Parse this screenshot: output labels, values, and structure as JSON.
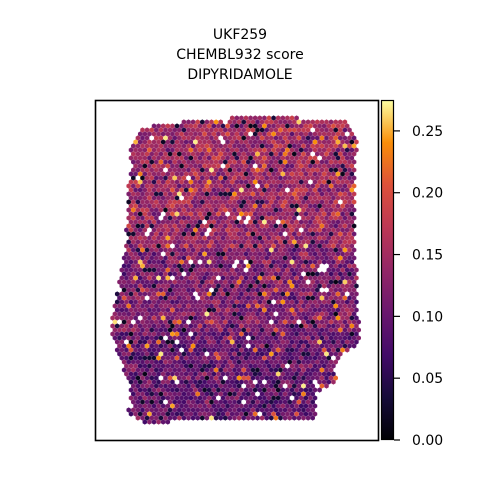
{
  "title_lines": [
    "UKF259",
    "CHEMBL932 score",
    "DIPYRIDAMOLE"
  ],
  "colorbar": {
    "colormap": "inferno",
    "ticks": [
      "0.00",
      "0.05",
      "0.10",
      "0.15",
      "0.20",
      "0.25"
    ],
    "tick_values": [
      0.0,
      0.05,
      0.1,
      0.15,
      0.2,
      0.25
    ],
    "vmin": 0.0,
    "vmax": 0.275
  },
  "chart_data": {
    "type": "scatter",
    "title": "UKF259\nCHEMBL932 score\nDIPYRIDAMOLE",
    "xlabel": "",
    "ylabel": "",
    "grid": false,
    "axes_ticks": false,
    "marker": "hexagon",
    "color_scale": {
      "colormap": "inferno",
      "range": [
        0.0,
        0.275
      ]
    },
    "value_distribution": {
      "typical_range": [
        0.08,
        0.18
      ],
      "min": 0.0,
      "max": 0.27
    }
  }
}
